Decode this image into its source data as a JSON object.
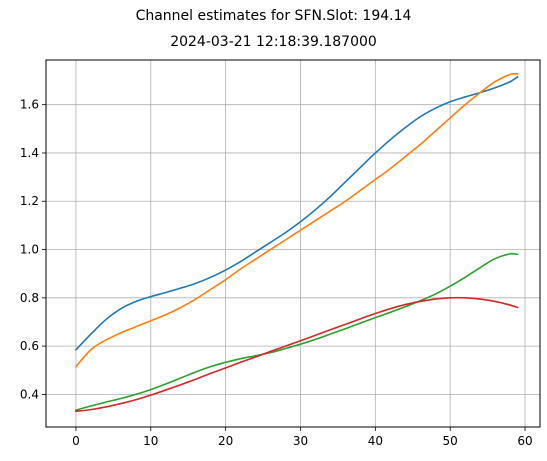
{
  "figure": {
    "suptitle": "Channel estimates for SFN.Slot: 194.14",
    "subtitle": "2024-03-21 12:18:39.187000"
  },
  "chart_data": {
    "type": "line",
    "xlim": [
      -4,
      62
    ],
    "ylim": [
      0.265,
      1.785
    ],
    "xticks": [
      0,
      10,
      20,
      30,
      40,
      50,
      60
    ],
    "yticks": [
      0.4,
      0.6,
      0.8,
      1.0,
      1.2,
      1.4,
      1.6
    ],
    "xtick_labels": [
      "0",
      "10",
      "20",
      "30",
      "40",
      "50",
      "60"
    ],
    "ytick_labels": [
      "0.4",
      "0.6",
      "0.8",
      "1.0",
      "1.2",
      "1.4",
      "1.6"
    ],
    "grid": true,
    "x": [
      0,
      2,
      4,
      6,
      8,
      10,
      12,
      14,
      16,
      18,
      20,
      22,
      24,
      26,
      28,
      30,
      32,
      34,
      36,
      38,
      40,
      42,
      44,
      46,
      48,
      50,
      52,
      54,
      56,
      58,
      59
    ],
    "series": [
      {
        "color": "#1f77b4",
        "values": [
          0.585,
          0.65,
          0.71,
          0.755,
          0.785,
          0.805,
          0.822,
          0.84,
          0.86,
          0.885,
          0.915,
          0.95,
          0.99,
          1.03,
          1.07,
          1.115,
          1.165,
          1.22,
          1.28,
          1.34,
          1.4,
          1.455,
          1.505,
          1.55,
          1.585,
          1.612,
          1.632,
          1.65,
          1.67,
          1.695,
          1.715
        ]
      },
      {
        "color": "#ff7f0e",
        "values": [
          0.515,
          0.585,
          0.625,
          0.655,
          0.68,
          0.705,
          0.73,
          0.76,
          0.795,
          0.835,
          0.875,
          0.92,
          0.96,
          1.0,
          1.04,
          1.08,
          1.12,
          1.16,
          1.2,
          1.245,
          1.29,
          1.335,
          1.385,
          1.435,
          1.49,
          1.545,
          1.6,
          1.65,
          1.695,
          1.725,
          1.728
        ]
      },
      {
        "color": "#2ca02c",
        "values": [
          0.335,
          0.352,
          0.368,
          0.383,
          0.4,
          0.42,
          0.443,
          0.468,
          0.493,
          0.515,
          0.533,
          0.548,
          0.56,
          0.573,
          0.59,
          0.608,
          0.628,
          0.65,
          0.672,
          0.695,
          0.718,
          0.74,
          0.763,
          0.788,
          0.815,
          0.848,
          0.885,
          0.925,
          0.962,
          0.982,
          0.98
        ]
      },
      {
        "color": "#d62728",
        "values": [
          0.33,
          0.337,
          0.348,
          0.362,
          0.378,
          0.397,
          0.418,
          0.44,
          0.463,
          0.487,
          0.51,
          0.533,
          0.555,
          0.578,
          0.6,
          0.622,
          0.645,
          0.668,
          0.69,
          0.713,
          0.735,
          0.755,
          0.772,
          0.785,
          0.795,
          0.8,
          0.8,
          0.795,
          0.785,
          0.77,
          0.76
        ]
      }
    ]
  }
}
